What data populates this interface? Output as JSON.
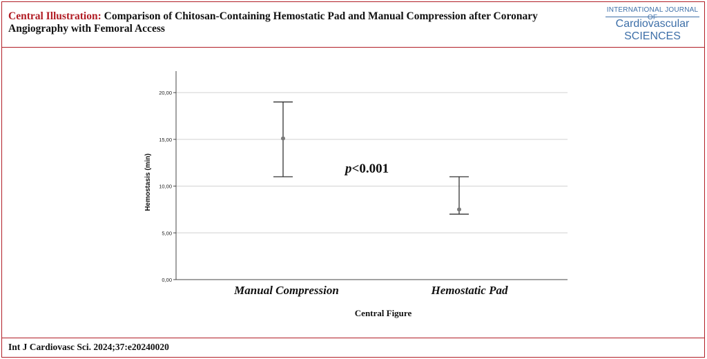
{
  "header": {
    "title_label": "Central Illustration:",
    "title_text": " Comparison of Chitosan-Containing Hemostatic Pad and Manual Compression after Coronary Angiography with Femoral Access"
  },
  "logo": {
    "line1": "INTERNATIONAL JOURNAL OF",
    "line2": "Cardiovascular",
    "line3": "SCIENCES"
  },
  "footer": {
    "citation": "Int J Cardiovasc Sci. 2024;37:e20240020"
  },
  "colors": {
    "accent": "#b11c24",
    "logo_blue": "#3d6fa8",
    "grid": "#d0d0d0",
    "marker": "#7a7a7a"
  },
  "chart_data": {
    "type": "scatter",
    "subtype": "error-bar",
    "categories": [
      "Manual Compression",
      "Hemostatic Pad"
    ],
    "mean": [
      15.1,
      7.5
    ],
    "lower": [
      11.0,
      7.0
    ],
    "upper": [
      19.0,
      11.0
    ],
    "ylabel": "Hemostasis (min)",
    "xlabel": "Central Figure",
    "yticks": [
      "0,00",
      "5,00",
      "10,00",
      "15,00",
      "20,00"
    ],
    "ytick_values": [
      0,
      5,
      10,
      15,
      20
    ],
    "ylim": [
      0,
      22.3
    ],
    "grid": true,
    "annotation_italic": "p",
    "annotation_rest": "<0.001"
  }
}
